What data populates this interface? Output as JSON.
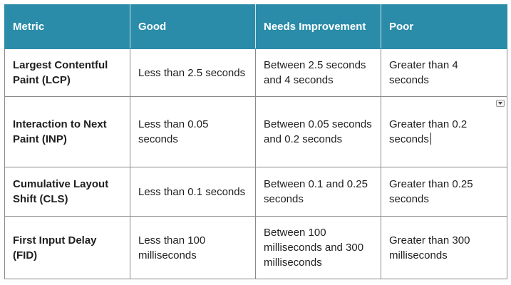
{
  "table": {
    "headers": [
      "Metric",
      "Good",
      "Needs Improvement",
      "Poor"
    ],
    "rows": [
      {
        "metric": "Largest Contentful Paint (LCP)",
        "good": "Less than 2.5 seconds",
        "needs_improvement": "Between 2.5 seconds and 4 seconds",
        "poor": "Greater than 4 seconds"
      },
      {
        "metric": "Interaction to Next Paint (INP)",
        "good": "Less than 0.05 seconds",
        "needs_improvement": "Between 0.05 seconds and 0.2 seconds",
        "poor": "Greater than 0.2 seconds"
      },
      {
        "metric": "Cumulative Layout Shift (CLS)",
        "good": "Less than 0.1 seconds",
        "needs_improvement": "Between 0.1 and 0.25 seconds",
        "poor": "Greater than 0.25 seconds"
      },
      {
        "metric": "First Input Delay (FID)",
        "good": "Less than 100 milliseconds",
        "needs_improvement": "Between 100 milliseconds and 300 milliseconds",
        "poor": "Greater than 300 milliseconds"
      }
    ]
  },
  "colors": {
    "header_background": "#2a8ca9",
    "header_text": "#ffffff",
    "cell_border": "#8a8a8a"
  },
  "icons": {
    "cell_dropdown": "chevron-down-icon"
  }
}
